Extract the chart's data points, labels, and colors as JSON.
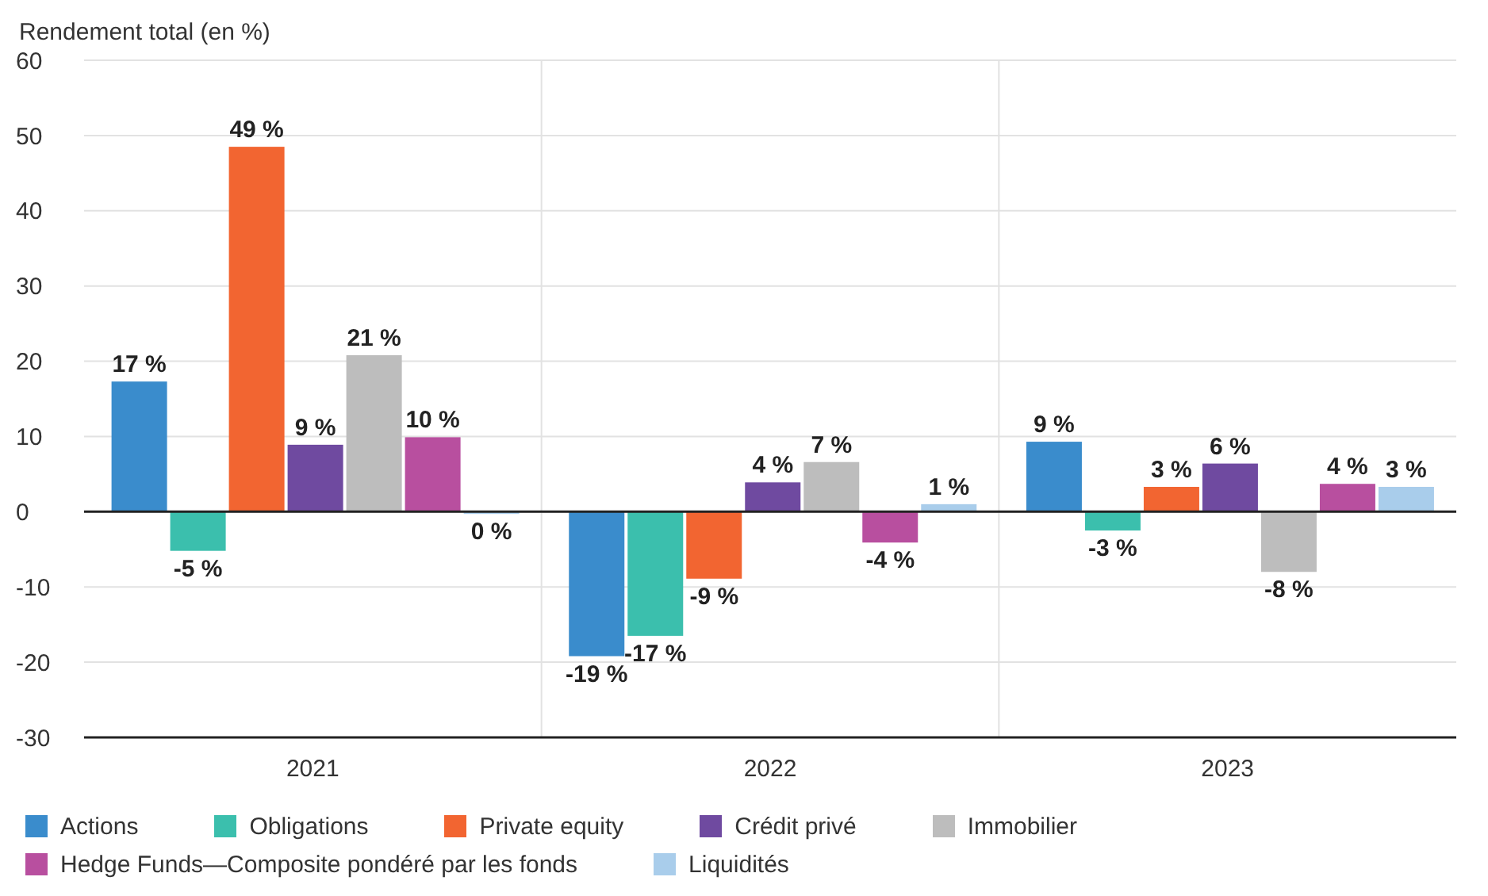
{
  "chart_data": {
    "type": "bar",
    "ylabel": "Rendement total (en %)",
    "categories": [
      "2021",
      "2022",
      "2023"
    ],
    "ylim": [
      -30,
      60
    ],
    "yticks": [
      -30,
      -20,
      -10,
      0,
      10,
      20,
      30,
      40,
      50,
      60
    ],
    "grid": true,
    "legend": "bottom",
    "ref_lines": [
      {
        "axis": "y",
        "value": 0,
        "color": "#222222"
      }
    ],
    "series": [
      {
        "name": "Actions",
        "color": "#3a8ccc",
        "values": [
          17.3,
          -19.2,
          9.3
        ],
        "value_labels": [
          "17 %",
          "-19 %",
          "9 %"
        ]
      },
      {
        "name": "Obligations",
        "color": "#3bbfad",
        "values": [
          -5.2,
          -16.5,
          -2.5
        ],
        "value_labels": [
          "-5 %",
          "-17 %",
          "-3 %"
        ]
      },
      {
        "name": "Private equity",
        "color": "#f26531",
        "values": [
          48.5,
          -8.9,
          3.3
        ],
        "value_labels": [
          "49 %",
          "-9 %",
          "3 %"
        ]
      },
      {
        "name": "Crédit privé",
        "color": "#6f4aa0",
        "values": [
          8.9,
          3.9,
          6.4
        ],
        "value_labels": [
          "9 %",
          "4 %",
          "6 %"
        ]
      },
      {
        "name": "Immobilier",
        "color": "#bdbdbd",
        "values": [
          20.8,
          6.6,
          -8.0
        ],
        "value_labels": [
          "21 %",
          "7 %",
          "-8 %"
        ]
      },
      {
        "name": "Hedge Funds—Composite pondéré par les fonds",
        "color": "#b84f9f",
        "values": [
          9.9,
          -4.1,
          3.7
        ],
        "value_labels": [
          "10 %",
          "-4 %",
          "4 %"
        ]
      },
      {
        "name": "Liquidités",
        "color": "#a9cdeb",
        "values": [
          -0.3,
          1.0,
          3.3
        ],
        "value_labels": [
          "0 %",
          "1 %",
          "3 %"
        ]
      }
    ]
  }
}
